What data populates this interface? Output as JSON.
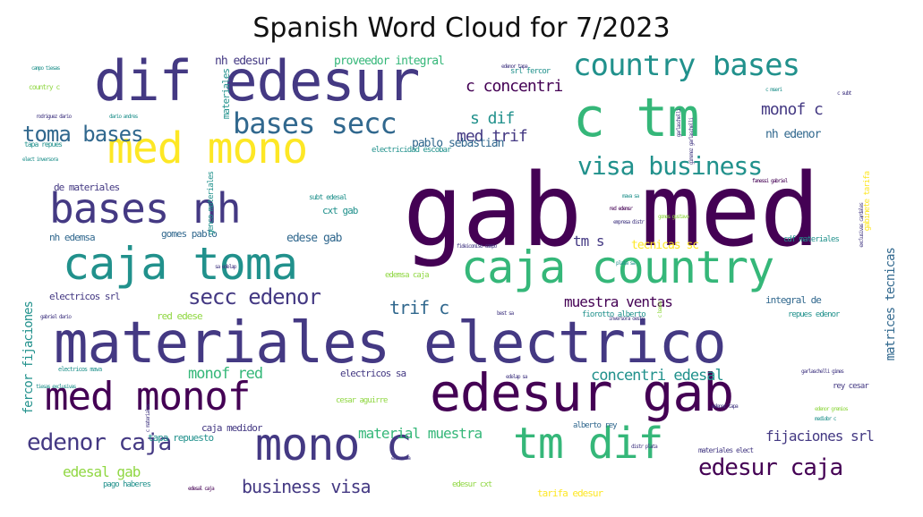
{
  "title": "Spanish Word Cloud for 7/2023",
  "palette": {
    "purple": "#440154",
    "indigo": "#443983",
    "blue": "#31688e",
    "teal": "#21918c",
    "green": "#35b779",
    "lime": "#90d743",
    "yellow": "#fde725"
  },
  "words": [
    {
      "text": "gab med",
      "size": 112,
      "color": "purple"
    },
    {
      "text": "materiales electrico",
      "size": 64,
      "color": "indigo"
    },
    {
      "text": "dif edesur",
      "size": 62,
      "color": "indigo"
    },
    {
      "text": "caja toma",
      "size": 50,
      "color": "teal"
    },
    {
      "text": "caja country",
      "size": 50,
      "color": "green"
    },
    {
      "text": "edesur gab",
      "size": 58,
      "color": "purple"
    },
    {
      "text": "c tm",
      "size": 60,
      "color": "green"
    },
    {
      "text": "med mono",
      "size": 48,
      "color": "yellow"
    },
    {
      "text": "bases nh",
      "size": 46,
      "color": "indigo"
    },
    {
      "text": "med monof",
      "size": 44,
      "color": "purple"
    },
    {
      "text": "mono c",
      "size": 50,
      "color": "indigo"
    },
    {
      "text": "tm dif",
      "size": 48,
      "color": "green"
    },
    {
      "text": "country bases",
      "size": 34,
      "color": "teal"
    },
    {
      "text": "bases secc",
      "size": 32,
      "color": "blue"
    },
    {
      "text": "edenor caja",
      "size": 26,
      "color": "indigo"
    },
    {
      "text": "edesur caja",
      "size": 26,
      "color": "purple"
    },
    {
      "text": "visa business",
      "size": 28,
      "color": "teal"
    },
    {
      "text": "toma bases",
      "size": 24,
      "color": "blue"
    },
    {
      "text": "secc edenor",
      "size": 24,
      "color": "indigo"
    },
    {
      "text": "business visa",
      "size": 20,
      "color": "indigo"
    },
    {
      "text": "c concentri",
      "size": 18,
      "color": "purple"
    },
    {
      "text": "med trif",
      "size": 18,
      "color": "indigo"
    },
    {
      "text": "s dif",
      "size": 18,
      "color": "teal"
    },
    {
      "text": "monof c",
      "size": 18,
      "color": "indigo"
    },
    {
      "text": "trif c",
      "size": 20,
      "color": "blue"
    },
    {
      "text": "muestra ventas",
      "size": 16,
      "color": "purple"
    },
    {
      "text": "fijaciones srl",
      "size": 16,
      "color": "indigo"
    },
    {
      "text": "concentri edesal",
      "size": 17,
      "color": "teal"
    },
    {
      "text": "monof red",
      "size": 17,
      "color": "green"
    },
    {
      "text": "material muestra",
      "size": 16,
      "color": "green"
    },
    {
      "text": "edesal gab",
      "size": 16,
      "color": "lime"
    },
    {
      "text": "tm s",
      "size": 16,
      "color": "indigo"
    },
    {
      "text": "nh edesur",
      "size": 13,
      "color": "indigo"
    },
    {
      "text": "proveedor integral",
      "size": 13,
      "color": "green"
    },
    {
      "text": "nh edenor",
      "size": 13,
      "color": "blue"
    },
    {
      "text": "pablo sebastian",
      "size": 13,
      "color": "blue"
    },
    {
      "text": "edese gab",
      "size": 13,
      "color": "blue"
    },
    {
      "text": "tecnicas sc",
      "size": 13,
      "color": "yellow"
    },
    {
      "text": "cxt gab",
      "size": 11,
      "color": "teal"
    },
    {
      "text": "gomes pablo",
      "size": 11,
      "color": "blue"
    },
    {
      "text": "de materiales",
      "size": 11,
      "color": "indigo"
    },
    {
      "text": "nh edemsa",
      "size": 11,
      "color": "blue"
    },
    {
      "text": "electricos srl",
      "size": 11,
      "color": "indigo"
    },
    {
      "text": "red edese",
      "size": 11,
      "color": "lime"
    },
    {
      "text": "electricos sa",
      "size": 11,
      "color": "indigo"
    },
    {
      "text": "integral de",
      "size": 11,
      "color": "blue"
    },
    {
      "text": "repues edenor",
      "size": 9,
      "color": "teal"
    },
    {
      "text": "fiorotto alberto",
      "size": 9,
      "color": "teal"
    },
    {
      "text": "tapa repuesto",
      "size": 11,
      "color": "teal"
    },
    {
      "text": "caja medidor",
      "size": 11,
      "color": "indigo"
    },
    {
      "text": "cesar aguirre",
      "size": 9,
      "color": "lime"
    },
    {
      "text": "alberto rey",
      "size": 9,
      "color": "blue"
    },
    {
      "text": "rey cesar",
      "size": 9,
      "color": "indigo"
    },
    {
      "text": "tarifa edesur",
      "size": 11,
      "color": "yellow"
    },
    {
      "text": "edesur cxt",
      "size": 9,
      "color": "lime"
    },
    {
      "text": "pago haberes",
      "size": 9,
      "color": "teal"
    },
    {
      "text": "electricidad escobar",
      "size": 9,
      "color": "teal"
    },
    {
      "text": "edemsa caja",
      "size": 9,
      "color": "lime"
    },
    {
      "text": "materiales elect",
      "size": 8,
      "color": "indigo"
    },
    {
      "text": "cdf materiales",
      "size": 9,
      "color": "teal"
    },
    {
      "text": "srl fercor",
      "size": 9,
      "color": "teal"
    },
    {
      "text": "country c",
      "size": 8,
      "color": "lime"
    },
    {
      "text": "tapa repues",
      "size": 8,
      "color": "teal"
    },
    {
      "text": "elect inversora",
      "size": 6,
      "color": "teal"
    },
    {
      "text": "rodriguez dario",
      "size": 6,
      "color": "indigo"
    },
    {
      "text": "dario andres",
      "size": 6,
      "color": "teal"
    },
    {
      "text": "campo tiesas",
      "size": 6,
      "color": "teal"
    },
    {
      "text": "edenor tapa",
      "size": 6,
      "color": "indigo"
    },
    {
      "text": "gabriel dario",
      "size": 6,
      "color": "indigo"
    },
    {
      "text": "electricos mava",
      "size": 7,
      "color": "teal"
    },
    {
      "text": "tiesas exclusivas",
      "size": 6,
      "color": "teal"
    },
    {
      "text": "edesal caja",
      "size": 6,
      "color": "purple"
    },
    {
      "text": "mava sa",
      "size": 6,
      "color": "teal"
    },
    {
      "text": "gomes gustavo",
      "size": 6,
      "color": "lime"
    },
    {
      "text": "red edemsr",
      "size": 6,
      "color": "purple"
    },
    {
      "text": "empresa distr",
      "size": 6,
      "color": "indigo"
    },
    {
      "text": "fideicomiso campo",
      "size": 6,
      "color": "indigo"
    },
    {
      "text": "plata sa",
      "size": 6,
      "color": "teal"
    },
    {
      "text": "sa edelap",
      "size": 6,
      "color": "indigo"
    },
    {
      "text": "best sa",
      "size": 6,
      "color": "indigo"
    },
    {
      "text": "inversora oeste",
      "size": 6,
      "color": "indigo"
    },
    {
      "text": "edelap sa",
      "size": 6,
      "color": "indigo"
    },
    {
      "text": "edesa sa",
      "size": 6,
      "color": "indigo"
    },
    {
      "text": "edenor tapa",
      "size": 6,
      "color": "indigo"
    },
    {
      "text": "distr plata",
      "size": 6,
      "color": "indigo"
    },
    {
      "text": "garlaschelli gimes",
      "size": 6,
      "color": "indigo"
    },
    {
      "text": "edenor gremios",
      "size": 6,
      "color": "lime"
    },
    {
      "text": "medidor c",
      "size": 6,
      "color": "teal"
    },
    {
      "text": "c mseri",
      "size": 6,
      "color": "teal"
    },
    {
      "text": "c subt",
      "size": 6,
      "color": "indigo"
    },
    {
      "text": "fanessi gabriel",
      "size": 6,
      "color": "purple"
    },
    {
      "text": "subt edesal",
      "size": 8,
      "color": "teal"
    },
    {
      "text": "fercor fijaciones",
      "size": 14,
      "color": "teal",
      "vertical": true
    },
    {
      "text": "matrices tecnicas",
      "size": 14,
      "color": "blue",
      "vertical": true
    },
    {
      "text": "materiales",
      "size": 11,
      "color": "teal",
      "vertical": true
    },
    {
      "text": "gabinete tarifa",
      "size": 9,
      "color": "yellow",
      "vertical": true
    },
    {
      "text": "genco materiales",
      "size": 9,
      "color": "teal",
      "vertical": true
    },
    {
      "text": "garlaschelli",
      "size": 6,
      "color": "indigo",
      "vertical": true
    },
    {
      "text": "gimenez garlaschelli",
      "size": 6,
      "color": "indigo",
      "vertical": true
    },
    {
      "text": "exclusivas cardales",
      "size": 6,
      "color": "indigo",
      "vertical": true
    },
    {
      "text": "c bases",
      "size": 6,
      "color": "lime",
      "vertical": true
    },
    {
      "text": "c materiales",
      "size": 6,
      "color": "indigo",
      "vertical": true
    }
  ]
}
